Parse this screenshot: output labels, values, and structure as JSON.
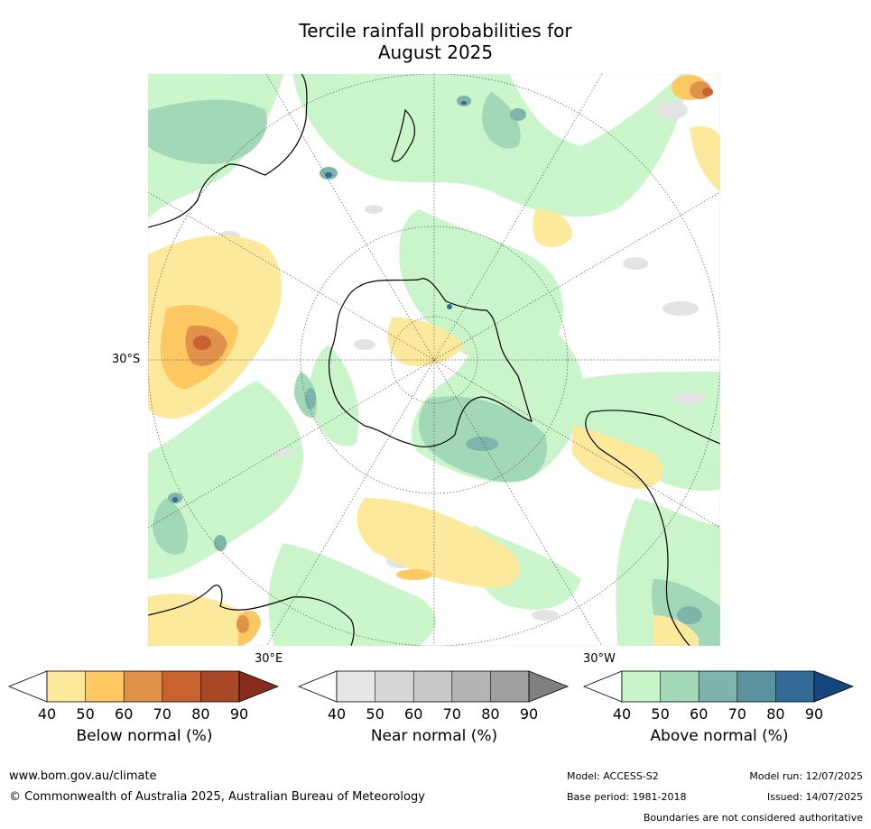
{
  "title": {
    "line1": "Tercile rainfall probabilities for",
    "line2": "August 2025"
  },
  "map": {
    "projection": "south polar stereographic",
    "labels": {
      "lat_30s": "30°S",
      "lon_30e": "30°E",
      "lon_30w": "30°W"
    }
  },
  "legends": [
    {
      "title": "Below normal (%)",
      "ticks": [
        "40",
        "50",
        "60",
        "70",
        "80",
        "90"
      ],
      "colors": [
        "#ffffff",
        "#fde99b",
        "#fdc862",
        "#e0924a",
        "#c9622f",
        "#a84827",
        "#8a2c1b"
      ]
    },
    {
      "title": "Near normal (%)",
      "ticks": [
        "40",
        "50",
        "60",
        "70",
        "80",
        "90"
      ],
      "colors": [
        "#ffffff",
        "#e6e6e6",
        "#d6d6d6",
        "#c8c8c8",
        "#b4b4b4",
        "#a0a0a0",
        "#808080"
      ]
    },
    {
      "title": "Above normal (%)",
      "ticks": [
        "40",
        "50",
        "60",
        "70",
        "80",
        "90"
      ],
      "colors": [
        "#ffffff",
        "#c8f5c8",
        "#a2d7b7",
        "#7db4ab",
        "#5b93a0",
        "#336a96",
        "#15467e"
      ]
    }
  ],
  "footer": {
    "website": "www.bom.gov.au/climate",
    "copyright": "© Commonwealth of Australia 2025, Australian Bureau of Meteorology",
    "model": "Model: ACCESS-S2",
    "base_period": "Base period: 1981-2018",
    "model_run": "Model run: 12/07/2025",
    "issued": "Issued: 14/07/2025",
    "disclaimer": "Boundaries are not considered authoritative"
  }
}
